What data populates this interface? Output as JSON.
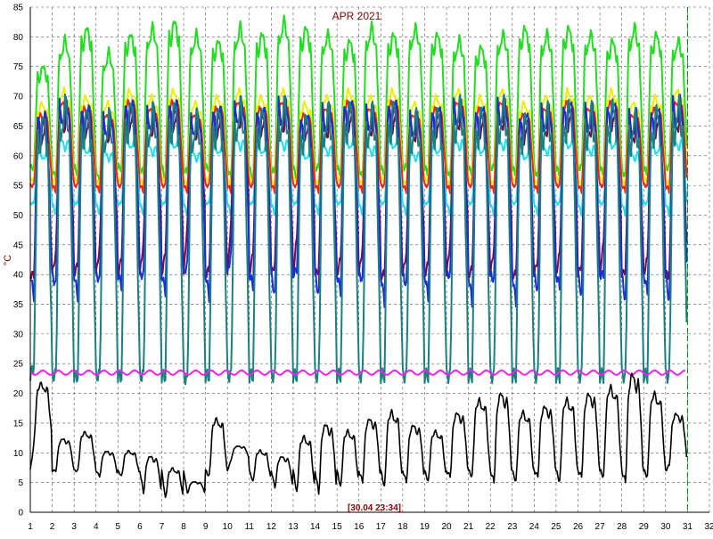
{
  "chart_data": {
    "type": "line",
    "title": "APR 2021",
    "ylabel": "°C",
    "xlabel": "",
    "status_text": "[30.04 23:34]",
    "ylim": [
      0,
      85
    ],
    "xlim": [
      1,
      32
    ],
    "grid": true,
    "y_ticks": [
      0,
      5,
      10,
      15,
      20,
      25,
      30,
      35,
      40,
      45,
      50,
      55,
      60,
      65,
      70,
      75,
      80,
      85
    ],
    "x_ticks": [
      1,
      2,
      3,
      4,
      5,
      6,
      7,
      8,
      9,
      10,
      11,
      12,
      13,
      14,
      15,
      16,
      17,
      18,
      19,
      20,
      21,
      22,
      23,
      24,
      25,
      26,
      27,
      28,
      29,
      30,
      31,
      32
    ],
    "current_marker_x": 31.0,
    "colors": {
      "green": "#22dd22",
      "yellow": "#eeee00",
      "red": "#ff2200",
      "blue": "#1a2fd6",
      "cyan": "#22ddee",
      "purple": "#7a0a4a",
      "teal": "#1a8080",
      "magenta": "#ee22ee",
      "black": "#000000",
      "title": "#8b0000",
      "marker": "#008800"
    },
    "series": [
      {
        "color_key": "green",
        "day_max": [
          74,
          78,
          80,
          76,
          79,
          80,
          81,
          79,
          78,
          80,
          79,
          81,
          80,
          79,
          78,
          80,
          79,
          80,
          79,
          78,
          77,
          79,
          80,
          79,
          80,
          79,
          78,
          80,
          79,
          78
        ],
        "day_min": [
          58,
          56,
          57,
          55,
          58,
          57,
          56,
          57,
          58,
          56,
          55,
          57,
          56,
          58,
          57,
          56,
          57,
          58,
          57,
          56,
          57,
          58,
          57,
          56,
          57,
          58,
          57,
          56,
          57,
          58
        ],
        "overnight": 58
      },
      {
        "color_key": "yellow",
        "day_max": [
          68,
          70,
          69,
          68,
          70,
          69,
          70,
          68,
          69,
          70,
          69,
          70,
          68,
          69,
          70,
          69,
          70,
          68,
          69,
          70,
          69,
          70,
          68,
          69,
          70,
          69,
          70,
          68,
          69,
          70
        ],
        "day_min": [
          56,
          55,
          56,
          55,
          56,
          55,
          56,
          55,
          56,
          55,
          56,
          55,
          56,
          55,
          56,
          55,
          56,
          55,
          56,
          55,
          56,
          55,
          56,
          55,
          56,
          55,
          56,
          55,
          56,
          55
        ],
        "overnight": 56
      },
      {
        "color_key": "red",
        "day_max": [
          66,
          68,
          67,
          66,
          68,
          67,
          68,
          66,
          67,
          68,
          67,
          68,
          66,
          67,
          68,
          67,
          68,
          66,
          67,
          68,
          67,
          68,
          66,
          67,
          68,
          67,
          68,
          66,
          67,
          68
        ],
        "day_min": [
          55,
          54,
          55,
          54,
          55,
          54,
          55,
          54,
          55,
          54,
          55,
          54,
          55,
          54,
          55,
          54,
          55,
          54,
          55,
          54,
          55,
          54,
          55,
          54,
          55,
          54,
          55,
          54,
          55,
          54
        ],
        "overnight": 55
      },
      {
        "color_key": "cyan",
        "day_max": [
          60,
          62,
          61,
          60,
          62,
          61,
          62,
          60,
          61,
          62,
          61,
          62,
          60,
          61,
          62,
          61,
          62,
          60,
          61,
          62,
          61,
          62,
          60,
          61,
          62,
          61,
          62,
          60,
          61,
          62
        ],
        "day_min": [
          52,
          50,
          52,
          50,
          52,
          50,
          52,
          50,
          52,
          50,
          52,
          50,
          52,
          50,
          52,
          50,
          52,
          50,
          52,
          50,
          52,
          50,
          52,
          50,
          52,
          50,
          52,
          50,
          52,
          50
        ],
        "overnight": 52
      },
      {
        "color_key": "purple",
        "day_max": [
          64,
          66,
          65,
          64,
          66,
          65,
          66,
          64,
          65,
          66,
          65,
          66,
          64,
          65,
          66,
          65,
          66,
          64,
          65,
          66,
          65,
          66,
          64,
          65,
          66,
          65,
          66,
          64,
          65,
          66
        ],
        "day_min": [
          40,
          44,
          42,
          45,
          43,
          46,
          44,
          49,
          41,
          50,
          44,
          42,
          47,
          41,
          43,
          45,
          40,
          44,
          42,
          46,
          41,
          45,
          40,
          43,
          44,
          42,
          46,
          41,
          43,
          40
        ],
        "overnight": 40
      },
      {
        "color_key": "blue",
        "day_max": [
          65,
          67,
          66,
          65,
          67,
          66,
          67,
          65,
          66,
          67,
          66,
          67,
          65,
          66,
          67,
          66,
          67,
          65,
          66,
          67,
          66,
          67,
          65,
          66,
          67,
          66,
          67,
          65,
          66,
          67
        ],
        "day_min": [
          36,
          38,
          36,
          39,
          38,
          40,
          37,
          42,
          36,
          44,
          38,
          36,
          41,
          36,
          37,
          39,
          35,
          38,
          36,
          40,
          35,
          39,
          35,
          37,
          38,
          36,
          40,
          35,
          37,
          35
        ],
        "overnight": 40
      },
      {
        "color_key": "teal",
        "day_max": [
          64,
          66,
          65,
          64,
          66,
          65,
          66,
          64,
          65,
          66,
          65,
          66,
          64,
          65,
          66,
          65,
          66,
          64,
          65,
          66,
          65,
          66,
          64,
          65,
          66,
          65,
          66,
          64,
          65,
          66
        ],
        "day_min": [
          25,
          23,
          23,
          23,
          23,
          23,
          23,
          22,
          23,
          23,
          23,
          23,
          23,
          23,
          23,
          23,
          23,
          23,
          23,
          23,
          23,
          23,
          23,
          23,
          23,
          23,
          23,
          23,
          23,
          23
        ],
        "overnight": 23,
        "is_low": true
      },
      {
        "color_key": "magenta",
        "flat": 23.5
      },
      {
        "color_key": "black",
        "day_max": [
          21,
          12,
          13,
          10,
          10,
          9,
          7,
          5,
          15,
          11,
          10,
          9,
          12,
          14,
          13,
          15,
          16,
          14,
          13,
          16,
          18,
          19,
          16,
          17,
          18,
          19,
          20,
          22,
          19,
          16
        ],
        "day_min": [
          12,
          7,
          7,
          6,
          6,
          3,
          2,
          3,
          6,
          9,
          5,
          4,
          3,
          3,
          4,
          5,
          4,
          5,
          5,
          6,
          6,
          5,
          5,
          6,
          5,
          6,
          6,
          5,
          6,
          8
        ],
        "overnight": 7
      }
    ]
  }
}
